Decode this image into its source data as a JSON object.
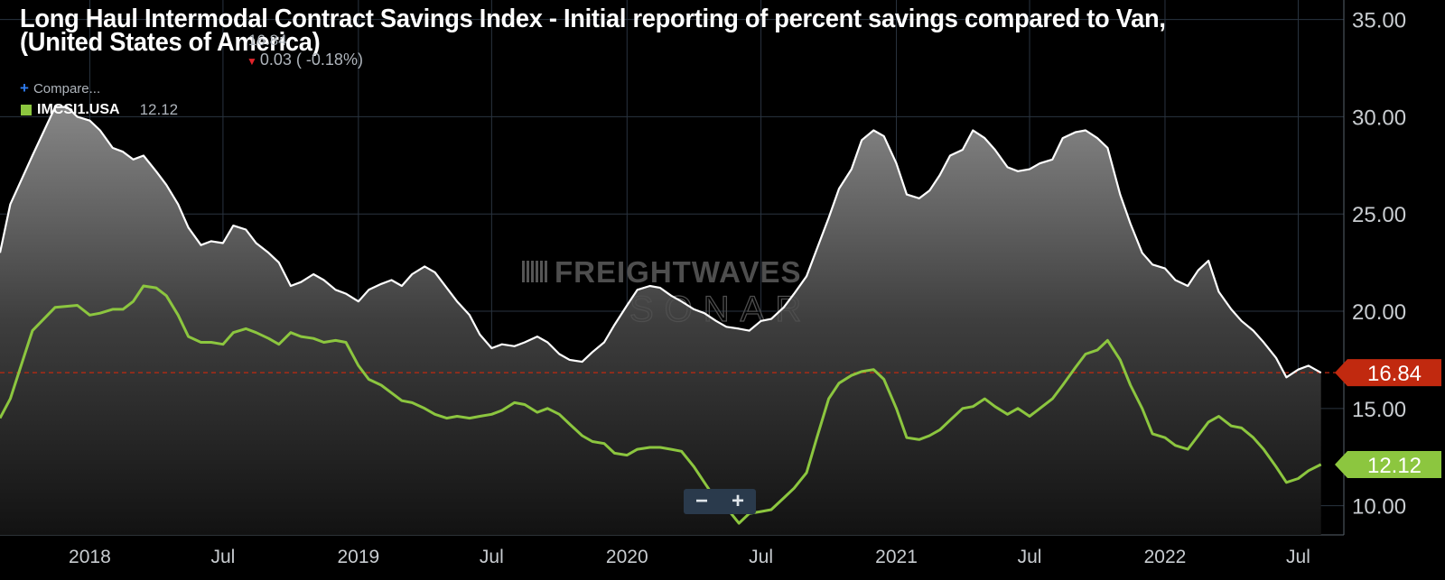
{
  "header": {
    "title": "Long Haul Intermodal Contract Savings Index - Initial reporting of percent savings compared to Van, (United States of America)",
    "last_value": "16.84",
    "change": "0.03 ( -0.18%)",
    "compare_label": "Compare..."
  },
  "legend": {
    "series_code": "IMCSI1.USA",
    "series_value": "12.12"
  },
  "watermark": {
    "line1": "FREIGHTWAVES",
    "line2": "SONAR"
  },
  "zoom": {
    "minus": "−",
    "plus": "+"
  },
  "colors": {
    "background": "#000000",
    "primary_line": "#ffffff",
    "secondary_line": "#8cc63f",
    "last_value_badge": "#c1290f",
    "reference_line": "#c1290f",
    "grid": "#2a3440"
  },
  "chart_data": {
    "type": "area",
    "xlabel": "",
    "ylabel": "",
    "x_range": [
      "2017-09-01",
      "2022-09-01"
    ],
    "ylim": [
      8.5,
      36
    ],
    "y_ticks": [
      10,
      15,
      20,
      25,
      30,
      35
    ],
    "y_tick_labels": [
      "10.00",
      "15.00",
      "20.00",
      "25.00",
      "30.00",
      "35.00"
    ],
    "x_ticks": [
      {
        "date": "2018-01-01",
        "label": "2018"
      },
      {
        "date": "2018-07-01",
        "label": "Jul"
      },
      {
        "date": "2019-01-01",
        "label": "2019"
      },
      {
        "date": "2019-07-01",
        "label": "Jul"
      },
      {
        "date": "2020-01-01",
        "label": "2020"
      },
      {
        "date": "2020-07-01",
        "label": "Jul"
      },
      {
        "date": "2021-01-01",
        "label": "2021"
      },
      {
        "date": "2021-07-01",
        "label": "Jul"
      },
      {
        "date": "2022-01-01",
        "label": "2022"
      },
      {
        "date": "2022-07-01",
        "label": "Jul"
      }
    ],
    "grid": true,
    "reference_line": 16.84,
    "series": [
      {
        "name": "",
        "role": "primary",
        "last_label": "16.84",
        "points": [
          [
            "2017-09-01",
            23
          ],
          [
            "2017-09-15",
            25.5
          ],
          [
            "2017-10-15",
            28
          ],
          [
            "2017-11-15",
            30.5
          ],
          [
            "2017-12-01",
            30.5
          ],
          [
            "2017-12-15",
            30
          ],
          [
            "2018-01-01",
            29.8
          ],
          [
            "2018-01-15",
            29.3
          ],
          [
            "2018-02-01",
            28.4
          ],
          [
            "2018-02-15",
            28.2
          ],
          [
            "2018-03-01",
            27.8
          ],
          [
            "2018-03-15",
            28
          ],
          [
            "2018-04-01",
            27.2
          ],
          [
            "2018-04-15",
            26.5
          ],
          [
            "2018-05-01",
            25.5
          ],
          [
            "2018-05-15",
            24.3
          ],
          [
            "2018-06-01",
            23.4
          ],
          [
            "2018-06-15",
            23.6
          ],
          [
            "2018-07-01",
            23.5
          ],
          [
            "2018-07-15",
            24.4
          ],
          [
            "2018-08-01",
            24.2
          ],
          [
            "2018-08-15",
            23.5
          ],
          [
            "2018-09-01",
            23
          ],
          [
            "2018-09-15",
            22.5
          ],
          [
            "2018-10-01",
            21.3
          ],
          [
            "2018-10-15",
            21.5
          ],
          [
            "2018-11-01",
            21.9
          ],
          [
            "2018-11-15",
            21.6
          ],
          [
            "2018-12-01",
            21.1
          ],
          [
            "2018-12-15",
            20.9
          ],
          [
            "2019-01-01",
            20.5
          ],
          [
            "2019-01-15",
            21.1
          ],
          [
            "2019-02-01",
            21.4
          ],
          [
            "2019-02-15",
            21.6
          ],
          [
            "2019-03-01",
            21.3
          ],
          [
            "2019-03-15",
            21.9
          ],
          [
            "2019-04-01",
            22.3
          ],
          [
            "2019-04-15",
            22
          ],
          [
            "2019-05-01",
            21.2
          ],
          [
            "2019-05-15",
            20.5
          ],
          [
            "2019-06-01",
            19.8
          ],
          [
            "2019-06-15",
            18.8
          ],
          [
            "2019-07-01",
            18.1
          ],
          [
            "2019-07-15",
            18.3
          ],
          [
            "2019-08-01",
            18.2
          ],
          [
            "2019-08-15",
            18.4
          ],
          [
            "2019-09-01",
            18.7
          ],
          [
            "2019-09-15",
            18.4
          ],
          [
            "2019-10-01",
            17.8
          ],
          [
            "2019-10-15",
            17.5
          ],
          [
            "2019-11-01",
            17.4
          ],
          [
            "2019-11-15",
            17.9
          ],
          [
            "2019-12-01",
            18.4
          ],
          [
            "2019-12-15",
            19.3
          ],
          [
            "2020-01-01",
            20.3
          ],
          [
            "2020-01-15",
            21.1
          ],
          [
            "2020-02-01",
            21.3
          ],
          [
            "2020-02-15",
            21.2
          ],
          [
            "2020-03-01",
            20.8
          ],
          [
            "2020-03-15",
            20.5
          ],
          [
            "2020-04-01",
            20.1
          ],
          [
            "2020-04-15",
            19.9
          ],
          [
            "2020-05-01",
            19.5
          ],
          [
            "2020-05-15",
            19.2
          ],
          [
            "2020-06-01",
            19.1
          ],
          [
            "2020-06-15",
            19
          ],
          [
            "2020-07-01",
            19.5
          ],
          [
            "2020-07-15",
            19.6
          ],
          [
            "2020-08-01",
            20.2
          ],
          [
            "2020-08-15",
            20.9
          ],
          [
            "2020-09-01",
            21.8
          ],
          [
            "2020-09-15",
            23.2
          ],
          [
            "2020-10-01",
            24.8
          ],
          [
            "2020-10-15",
            26.3
          ],
          [
            "2020-11-01",
            27.3
          ],
          [
            "2020-11-15",
            28.8
          ],
          [
            "2020-12-01",
            29.3
          ],
          [
            "2020-12-15",
            29
          ],
          [
            "2021-01-01",
            27.6
          ],
          [
            "2021-01-15",
            26
          ],
          [
            "2021-02-01",
            25.8
          ],
          [
            "2021-02-15",
            26.2
          ],
          [
            "2021-03-01",
            27
          ],
          [
            "2021-03-15",
            28
          ],
          [
            "2021-04-01",
            28.3
          ],
          [
            "2021-04-15",
            29.3
          ],
          [
            "2021-05-01",
            28.9
          ],
          [
            "2021-05-15",
            28.3
          ],
          [
            "2021-06-01",
            27.4
          ],
          [
            "2021-06-15",
            27.2
          ],
          [
            "2021-07-01",
            27.3
          ],
          [
            "2021-07-15",
            27.6
          ],
          [
            "2021-08-01",
            27.8
          ],
          [
            "2021-08-15",
            28.9
          ],
          [
            "2021-09-01",
            29.2
          ],
          [
            "2021-09-15",
            29.3
          ],
          [
            "2021-10-01",
            28.9
          ],
          [
            "2021-10-15",
            28.4
          ],
          [
            "2021-11-01",
            26
          ],
          [
            "2021-11-15",
            24.5
          ],
          [
            "2021-12-01",
            23
          ],
          [
            "2021-12-15",
            22.4
          ],
          [
            "2022-01-01",
            22.2
          ],
          [
            "2022-01-15",
            21.6
          ],
          [
            "2022-02-01",
            21.3
          ],
          [
            "2022-02-15",
            22.1
          ],
          [
            "2022-03-01",
            22.6
          ],
          [
            "2022-03-15",
            21
          ],
          [
            "2022-04-01",
            20.1
          ],
          [
            "2022-04-15",
            19.5
          ],
          [
            "2022-05-01",
            19
          ],
          [
            "2022-05-15",
            18.4
          ],
          [
            "2022-06-01",
            17.6
          ],
          [
            "2022-06-15",
            16.6
          ],
          [
            "2022-07-01",
            17
          ],
          [
            "2022-07-15",
            17.2
          ],
          [
            "2022-08-01",
            16.84
          ]
        ]
      },
      {
        "name": "IMCSI1.USA",
        "role": "secondary",
        "last_label": "12.12",
        "points": [
          [
            "2017-09-01",
            14.5
          ],
          [
            "2017-09-15",
            15.5
          ],
          [
            "2017-10-15",
            19
          ],
          [
            "2017-11-15",
            20.2
          ],
          [
            "2017-12-15",
            20.3
          ],
          [
            "2018-01-01",
            19.8
          ],
          [
            "2018-01-15",
            19.9
          ],
          [
            "2018-02-01",
            20.1
          ],
          [
            "2018-02-15",
            20.1
          ],
          [
            "2018-03-01",
            20.5
          ],
          [
            "2018-03-15",
            21.3
          ],
          [
            "2018-04-01",
            21.2
          ],
          [
            "2018-04-15",
            20.8
          ],
          [
            "2018-05-01",
            19.8
          ],
          [
            "2018-05-15",
            18.7
          ],
          [
            "2018-06-01",
            18.4
          ],
          [
            "2018-06-15",
            18.4
          ],
          [
            "2018-07-01",
            18.3
          ],
          [
            "2018-07-15",
            18.9
          ],
          [
            "2018-08-01",
            19.1
          ],
          [
            "2018-08-15",
            18.9
          ],
          [
            "2018-09-01",
            18.6
          ],
          [
            "2018-09-15",
            18.3
          ],
          [
            "2018-10-01",
            18.9
          ],
          [
            "2018-10-15",
            18.7
          ],
          [
            "2018-11-01",
            18.6
          ],
          [
            "2018-11-15",
            18.4
          ],
          [
            "2018-12-01",
            18.5
          ],
          [
            "2018-12-15",
            18.4
          ],
          [
            "2019-01-01",
            17.2
          ],
          [
            "2019-01-15",
            16.5
          ],
          [
            "2019-02-01",
            16.2
          ],
          [
            "2019-02-15",
            15.8
          ],
          [
            "2019-03-01",
            15.4
          ],
          [
            "2019-03-15",
            15.3
          ],
          [
            "2019-04-01",
            15
          ],
          [
            "2019-04-15",
            14.7
          ],
          [
            "2019-05-01",
            14.5
          ],
          [
            "2019-05-15",
            14.6
          ],
          [
            "2019-06-01",
            14.5
          ],
          [
            "2019-06-15",
            14.6
          ],
          [
            "2019-07-01",
            14.7
          ],
          [
            "2019-07-15",
            14.9
          ],
          [
            "2019-08-01",
            15.3
          ],
          [
            "2019-08-15",
            15.2
          ],
          [
            "2019-09-01",
            14.8
          ],
          [
            "2019-09-15",
            15
          ],
          [
            "2019-10-01",
            14.7
          ],
          [
            "2019-10-15",
            14.2
          ],
          [
            "2019-11-01",
            13.6
          ],
          [
            "2019-11-15",
            13.3
          ],
          [
            "2019-12-01",
            13.2
          ],
          [
            "2019-12-15",
            12.7
          ],
          [
            "2020-01-01",
            12.6
          ],
          [
            "2020-01-15",
            12.9
          ],
          [
            "2020-02-01",
            13
          ],
          [
            "2020-02-15",
            13
          ],
          [
            "2020-03-01",
            12.9
          ],
          [
            "2020-03-15",
            12.8
          ],
          [
            "2020-04-01",
            12
          ],
          [
            "2020-04-15",
            11.2
          ],
          [
            "2020-05-01",
            10.3
          ],
          [
            "2020-05-15",
            9.9
          ],
          [
            "2020-06-01",
            9.1
          ],
          [
            "2020-06-15",
            9.6
          ],
          [
            "2020-07-01",
            9.7
          ],
          [
            "2020-07-15",
            9.8
          ],
          [
            "2020-08-01",
            10.4
          ],
          [
            "2020-08-15",
            10.9
          ],
          [
            "2020-09-01",
            11.7
          ],
          [
            "2020-09-15",
            13.5
          ],
          [
            "2020-10-01",
            15.5
          ],
          [
            "2020-10-15",
            16.3
          ],
          [
            "2020-11-01",
            16.7
          ],
          [
            "2020-11-15",
            16.9
          ],
          [
            "2020-12-01",
            17
          ],
          [
            "2020-12-15",
            16.5
          ],
          [
            "2021-01-01",
            15
          ],
          [
            "2021-01-15",
            13.5
          ],
          [
            "2021-02-01",
            13.4
          ],
          [
            "2021-02-15",
            13.6
          ],
          [
            "2021-03-01",
            13.9
          ],
          [
            "2021-03-15",
            14.4
          ],
          [
            "2021-04-01",
            15
          ],
          [
            "2021-04-15",
            15.1
          ],
          [
            "2021-05-01",
            15.5
          ],
          [
            "2021-05-15",
            15.1
          ],
          [
            "2021-06-01",
            14.7
          ],
          [
            "2021-06-15",
            15
          ],
          [
            "2021-07-01",
            14.6
          ],
          [
            "2021-07-15",
            15
          ],
          [
            "2021-08-01",
            15.5
          ],
          [
            "2021-08-15",
            16.2
          ],
          [
            "2021-09-01",
            17.1
          ],
          [
            "2021-09-15",
            17.8
          ],
          [
            "2021-10-01",
            18
          ],
          [
            "2021-10-15",
            18.5
          ],
          [
            "2021-11-01",
            17.5
          ],
          [
            "2021-11-15",
            16.2
          ],
          [
            "2021-12-01",
            15
          ],
          [
            "2021-12-15",
            13.7
          ],
          [
            "2022-01-01",
            13.5
          ],
          [
            "2022-01-15",
            13.1
          ],
          [
            "2022-02-01",
            12.9
          ],
          [
            "2022-02-15",
            13.6
          ],
          [
            "2022-03-01",
            14.3
          ],
          [
            "2022-03-15",
            14.6
          ],
          [
            "2022-04-01",
            14.1
          ],
          [
            "2022-04-15",
            14
          ],
          [
            "2022-05-01",
            13.5
          ],
          [
            "2022-05-15",
            12.9
          ],
          [
            "2022-06-01",
            12
          ],
          [
            "2022-06-15",
            11.2
          ],
          [
            "2022-07-01",
            11.4
          ],
          [
            "2022-07-15",
            11.8
          ],
          [
            "2022-08-01",
            12.12
          ]
        ]
      }
    ]
  }
}
